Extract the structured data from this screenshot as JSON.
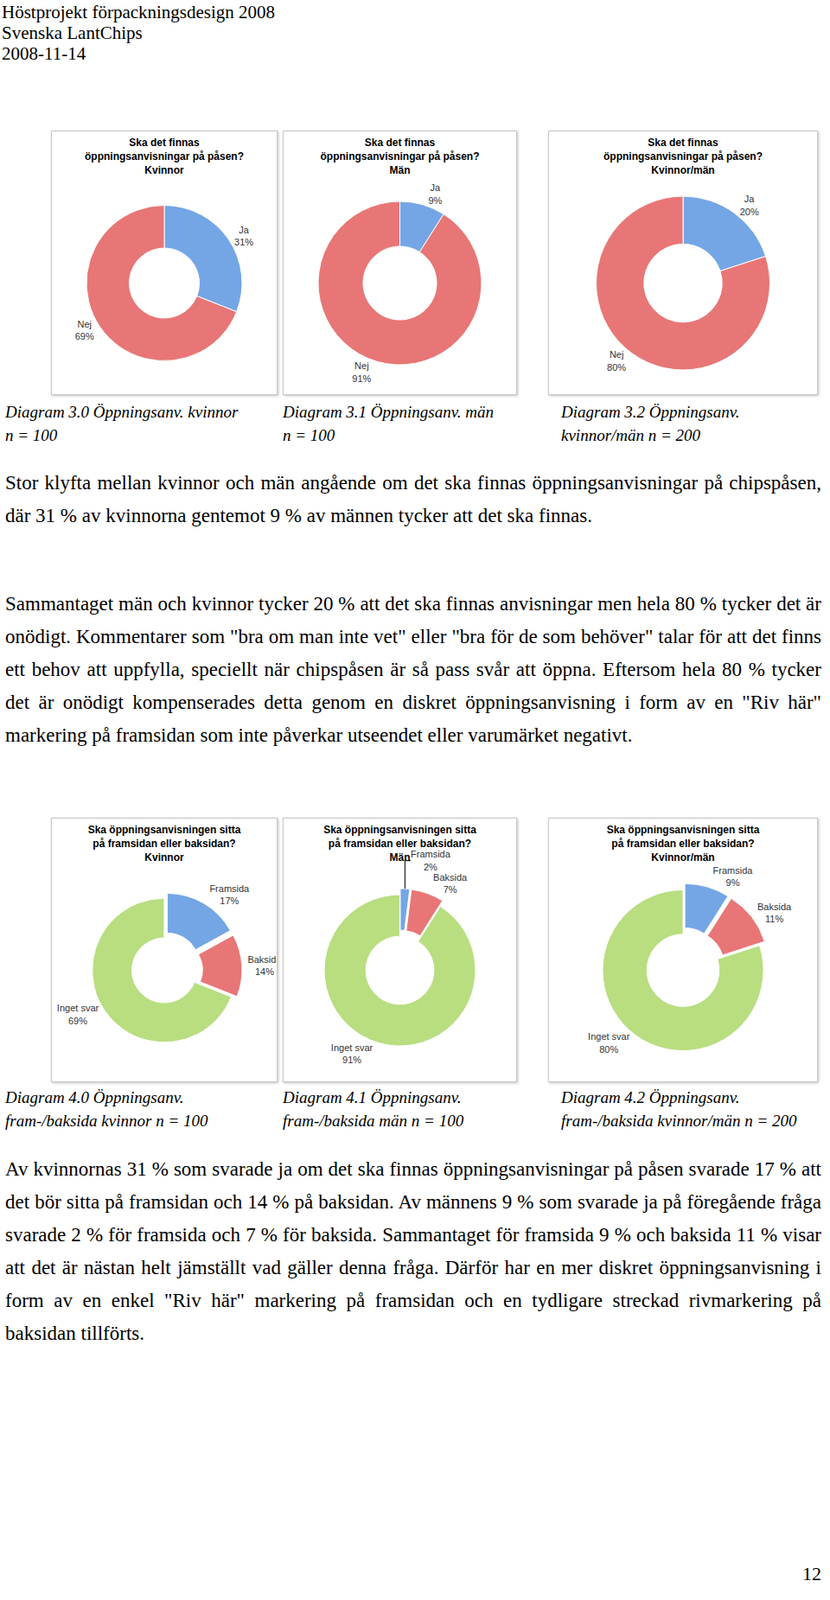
{
  "header": {
    "lines": [
      "Höstprojekt förpackningsdesign 2008",
      "Svenska LantChips",
      "2008-11-14"
    ]
  },
  "chart_data": [
    {
      "type": "pie",
      "title": "Ska det finnas\nöppningsanvisningar på påsen?\nKvinnor",
      "categories": [
        "Ja",
        "Nej"
      ],
      "values": [
        31,
        69
      ],
      "value_labels": [
        "31%",
        "69%"
      ],
      "colors": [
        "#74a6e6",
        "#e87676"
      ],
      "data_labels": true
    },
    {
      "type": "pie",
      "title": "Ska det finnas\nöppningsanvisningar på påsen?\nMän",
      "categories": [
        "Ja",
        "Nej"
      ],
      "values": [
        9,
        91
      ],
      "value_labels": [
        "9%",
        "91%"
      ],
      "colors": [
        "#74a6e6",
        "#e87676"
      ],
      "data_labels": true
    },
    {
      "type": "pie",
      "title": "Ska det finnas\nöppningsanvisningar på påsen?\nKvinnor/män",
      "categories": [
        "Ja",
        "Nej"
      ],
      "values": [
        20,
        80
      ],
      "value_labels": [
        "20%",
        "80%"
      ],
      "colors": [
        "#74a6e6",
        "#e87676"
      ],
      "data_labels": true
    },
    {
      "type": "pie",
      "title": "Ska öppningsanvisningen sitta\npå framsidan eller baksidan?\nKvinnor",
      "categories": [
        "Framsida",
        "Baksida",
        "Inget svar"
      ],
      "values": [
        17,
        14,
        69
      ],
      "value_labels": [
        "17%",
        "14%",
        "69%"
      ],
      "colors": [
        "#74a6e6",
        "#e87676",
        "#b8de80"
      ],
      "data_labels": true
    },
    {
      "type": "pie",
      "title": "Ska öppningsanvisningen sitta\npå framsidan eller baksidan?\nMän",
      "categories": [
        "Framsida",
        "Baksida",
        "Inget svar"
      ],
      "values": [
        2,
        7,
        91
      ],
      "value_labels": [
        "2%",
        "7%",
        "91%"
      ],
      "colors": [
        "#74a6e6",
        "#e87676",
        "#b8de80"
      ],
      "data_labels": true
    },
    {
      "type": "pie",
      "title": "Ska öppningsanvisningen sitta\npå framsidan eller baksidan?\nKvinnor/män",
      "categories": [
        "Framsida",
        "Baksida",
        "Inget svar"
      ],
      "values": [
        9,
        11,
        80
      ],
      "value_labels": [
        "9%",
        "11%",
        "80%"
      ],
      "colors": [
        "#74a6e6",
        "#e87676",
        "#b8de80"
      ],
      "data_labels": true
    }
  ],
  "captions": [
    [
      "Diagram 3.0 Öppningsanv. kvinnor",
      "n = 100"
    ],
    [
      "Diagram 3.1 Öppningsanv. män",
      "n = 100"
    ],
    [
      "Diagram 3.2 Öppningsanv.",
      "kvinnor/män n = 200"
    ],
    [
      "Diagram 4.0 Öppningsanv.",
      "fram-/baksida kvinnor n = 100"
    ],
    [
      "Diagram 4.1 Öppningsanv.",
      "fram-/baksida män n = 100"
    ],
    [
      "Diagram 4.2 Öppningsanv.",
      "fram-/baksida kvinnor/män n = 200"
    ]
  ],
  "paragraphs": [
    "Stor klyfta mellan kvinnor och män angående om det ska finnas öppningsanvisningar på chipspåsen, där 31 % av kvinnorna gentemot 9 % av männen tycker att det ska finnas.",
    "Sammantaget män och kvinnor tycker 20 % att det ska finnas anvisningar men hela 80 % tycker det är onödigt. Kommentarer som \"bra om man inte vet\" eller \"bra för de som behöver\" talar för att det finns ett behov att uppfylla, speciellt när chipspåsen är så pass svår att öppna. Eftersom hela 80 % tycker det är onödigt kompenserades detta genom en diskret öppningsanvisning i form av en \"Riv här\" markering på framsidan som inte påverkar utseendet eller varumärket negativt.",
    "Av kvinnornas 31 % som svarade ja om det ska finnas öppningsanvisningar på påsen svarade 17 % att det bör sitta på framsidan och 14 % på baksidan. Av männens 9 % som svarade ja på föregående fråga svarade 2 % för framsida och 7 % för baksida. Sammantaget för framsida 9 % och baksida 11 % visar att det är nästan helt jämställt vad gäller denna fråga. Därför har en mer diskret öppningsanvisning i form av en enkel \"Riv här\" markering på framsidan och en tydligare streckad rivmarkering på baksidan tillförts."
  ],
  "page_number": 12
}
